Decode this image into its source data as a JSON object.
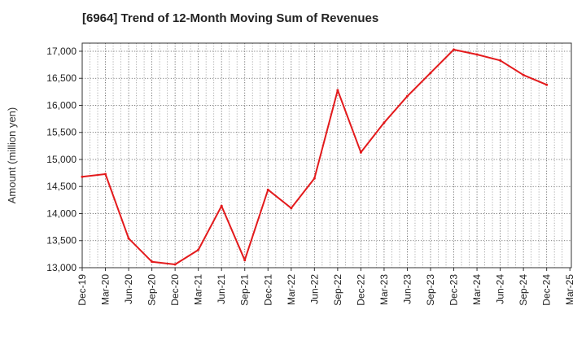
{
  "chart_data": {
    "type": "line",
    "title": "[6964]  Trend of 12-Month Moving Sum of Revenues",
    "xlabel": "",
    "ylabel": "Amount (million yen)",
    "ylim": [
      13000,
      17150
    ],
    "yticks": [
      13000,
      13500,
      14000,
      14500,
      15000,
      15500,
      16000,
      16500,
      17000
    ],
    "ytick_labels": [
      "13,000",
      "13,500",
      "14,000",
      "14,500",
      "15,000",
      "15,500",
      "16,000",
      "16,500",
      "17,000"
    ],
    "categories": [
      "Dec-19",
      "Mar-20",
      "Jun-20",
      "Sep-20",
      "Dec-20",
      "Mar-21",
      "Jun-21",
      "Sep-21",
      "Dec-21",
      "Mar-22",
      "Jun-22",
      "Sep-22",
      "Dec-22",
      "Mar-23",
      "Jun-23",
      "Sep-23",
      "Dec-23",
      "Mar-24",
      "Jun-24",
      "Sep-24",
      "Dec-24",
      "Mar-25"
    ],
    "grid": true,
    "series": [
      {
        "color": "#e31a1c",
        "values": [
          14680,
          14730,
          13540,
          13110,
          13060,
          13330,
          14140,
          13140,
          14440,
          14100,
          14650,
          16280,
          15130,
          15680,
          16170,
          16600,
          17030,
          16940,
          16830,
          16560,
          16380,
          null
        ]
      }
    ]
  }
}
